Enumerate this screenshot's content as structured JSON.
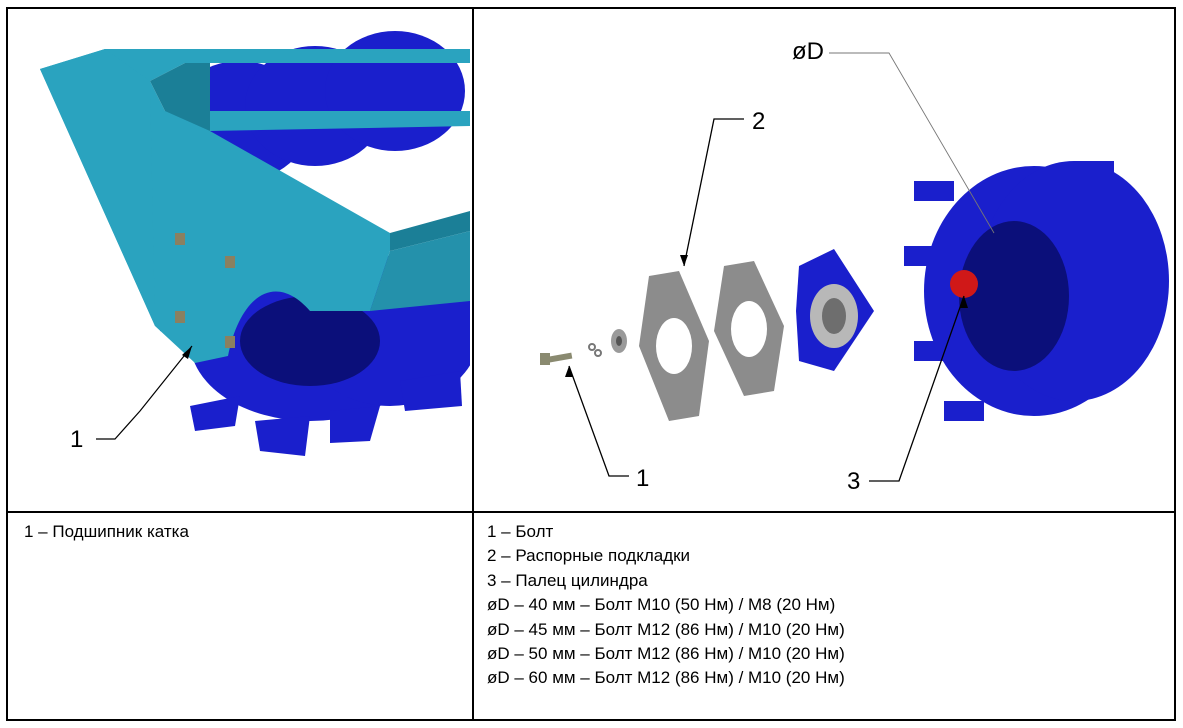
{
  "left_cell": {
    "figure": {
      "callouts": [
        "1"
      ]
    },
    "caption": "1 – Подшипник катка"
  },
  "right_cell": {
    "figure": {
      "callouts": [
        "øD",
        "2",
        "1",
        "3"
      ]
    },
    "legend": [
      "1 – Болт",
      "2 – Распорные подкладки",
      "3 – Палец цилиндра",
      "øD – 40 мм – Болт M10 (50 Нм) / M8 (20 Нм)",
      "øD – 45 мм – Болт M12 (86 Нм) / M10 (20 Нм)",
      "øD – 50 мм – Болт M12 (86 Нм) / M10 (20 Нм)",
      "øD – 60 мм – Болт M12 (86 Нм) / M10 (20 Нм)"
    ]
  },
  "colors": {
    "frame": "#2aa3bf",
    "frame_dark": "#1b7f97",
    "roller": "#1a1fcc",
    "roller_dark": "#0b0f7a",
    "shim": "#8c8c8c",
    "pin": "#d01818",
    "bearing_metal": "#b8b8b8"
  }
}
